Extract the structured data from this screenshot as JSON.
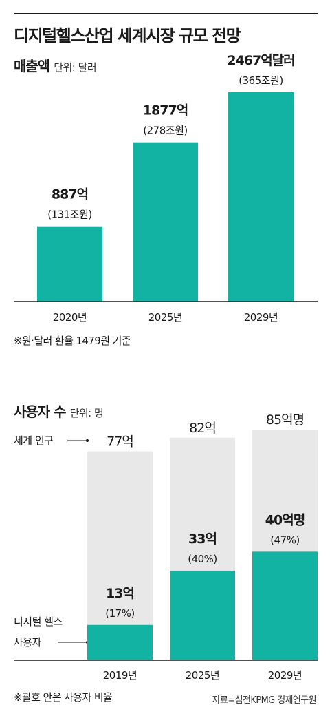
{
  "title": "디지털헬스산업 세계시장 규모 전망",
  "revenue": {
    "section_title": "매출액",
    "unit_label": "단위: 달러",
    "note": "※원·달러 환율 1479원 기준"
  },
  "users": {
    "section_title": "사용자 수",
    "unit_label": "단위: 명",
    "world_pop_label": "세계 인구",
    "digital_user_label_line1": "디지털 헬스",
    "digital_user_label_line2": "사용자",
    "note": "※괄호 안은 사용자 비율"
  },
  "source": "자료=심전KPMG 경제연구원",
  "colors": {
    "bar": "#13b3a3",
    "bar_bg": "#e8e8e8",
    "text": "#1a1a1a",
    "axis": "#1a1a1a"
  },
  "chart_data": [
    {
      "type": "bar",
      "title": "매출액",
      "categories": [
        "2020년",
        "2025년",
        "2029년"
      ],
      "values": [
        887,
        1877,
        2467
      ],
      "value_labels": [
        "887억",
        "1877억",
        "2467억달러"
      ],
      "sub_labels": [
        "(131조원)",
        "(278조원)",
        "(365조원)"
      ],
      "unit": "억 달러",
      "ylim": [
        0,
        2467
      ],
      "grid": false
    },
    {
      "type": "bar",
      "title": "사용자 수",
      "categories": [
        "2019년",
        "2025년",
        "2029년"
      ],
      "series": [
        {
          "name": "세계 인구",
          "values": [
            77,
            82,
            85
          ],
          "labels": [
            "77억",
            "82억",
            "85억명"
          ]
        },
        {
          "name": "디지털 헬스 사용자",
          "values": [
            13,
            33,
            40
          ],
          "labels": [
            "13억",
            "33억",
            "40억명"
          ],
          "share_labels": [
            "(17%)",
            "(40%)",
            "(47%)"
          ]
        }
      ],
      "unit": "억 명",
      "ylim": [
        0,
        85
      ],
      "grid": false
    }
  ]
}
